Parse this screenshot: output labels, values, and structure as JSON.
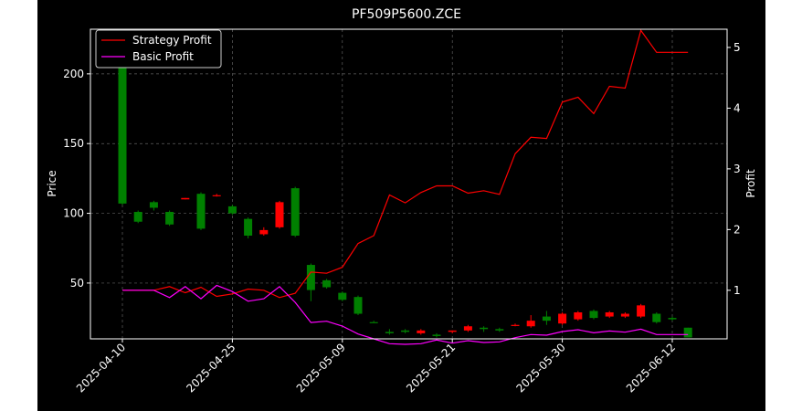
{
  "chart_data": {
    "type": "candlestick+line",
    "title": "PF509P5600.ZCE",
    "ylabel_left": "Price",
    "ylabel_right": "Profit",
    "ylim_left": [
      10,
      232
    ],
    "ylim_right": [
      0.2,
      5.3
    ],
    "yticks_left": [
      50,
      100,
      150,
      200
    ],
    "yticks_right": [
      1,
      2,
      3,
      4,
      5
    ],
    "xticks": [
      "2025-04-10",
      "2025-04-25",
      "2025-05-09",
      "2025-05-21",
      "2025-05-30",
      "2025-06-12"
    ],
    "grid": true,
    "legend_position": "upper-left",
    "colors": {
      "up": "#ff0000",
      "down": "#008000",
      "strategy": "#ff0000",
      "basic": "#ff00ff",
      "background": "#000000"
    },
    "candles": [
      {
        "o": 107,
        "c": 225,
        "h": 226,
        "l": 106
      },
      {
        "o": 94,
        "c": 101,
        "h": 102,
        "l": 93
      },
      {
        "o": 104,
        "c": 108,
        "h": 109,
        "l": 102
      },
      {
        "o": 92,
        "c": 101,
        "h": 102,
        "l": 91
      },
      {
        "o": 110,
        "c": 111,
        "h": 111,
        "l": 110
      },
      {
        "o": 89,
        "c": 114,
        "h": 115,
        "l": 88
      },
      {
        "o": 113,
        "c": 113,
        "h": 114,
        "l": 112
      },
      {
        "o": 100,
        "c": 105,
        "h": 106,
        "l": 99
      },
      {
        "o": 84,
        "c": 96,
        "h": 97,
        "l": 82
      },
      {
        "o": 85,
        "c": 88,
        "h": 90,
        "l": 84
      },
      {
        "o": 90,
        "c": 108,
        "h": 109,
        "l": 89
      },
      {
        "o": 84,
        "c": 118,
        "h": 119,
        "l": 83
      },
      {
        "o": 45,
        "c": 63,
        "h": 64,
        "l": 37
      },
      {
        "o": 47,
        "c": 52,
        "h": 53,
        "l": 46
      },
      {
        "o": 38,
        "c": 43,
        "h": 44,
        "l": 37
      },
      {
        "o": 28,
        "c": 40,
        "h": 41,
        "l": 27
      },
      {
        "o": 22,
        "c": 22,
        "h": 23,
        "l": 22
      },
      {
        "o": 14,
        "c": 15,
        "h": 17,
        "l": 13
      },
      {
        "o": 15,
        "c": 16,
        "h": 17,
        "l": 14
      },
      {
        "o": 14,
        "c": 16,
        "h": 17,
        "l": 13
      },
      {
        "o": 12,
        "c": 13,
        "h": 14,
        "l": 11
      },
      {
        "o": 15,
        "c": 16,
        "h": 16,
        "l": 14
      },
      {
        "o": 16,
        "c": 19,
        "h": 20,
        "l": 15
      },
      {
        "o": 17,
        "c": 18,
        "h": 19,
        "l": 15
      },
      {
        "o": 16,
        "c": 17,
        "h": 18,
        "l": 15
      },
      {
        "o": 20,
        "c": 20,
        "h": 21,
        "l": 19
      },
      {
        "o": 19,
        "c": 23,
        "h": 27,
        "l": 18
      },
      {
        "o": 23,
        "c": 26,
        "h": 30,
        "l": 20
      },
      {
        "o": 21,
        "c": 28,
        "h": 29,
        "l": 20
      },
      {
        "o": 24,
        "c": 29,
        "h": 30,
        "l": 23
      },
      {
        "o": 25,
        "c": 30,
        "h": 31,
        "l": 24
      },
      {
        "o": 26,
        "c": 29,
        "h": 30,
        "l": 25
      },
      {
        "o": 26,
        "c": 28,
        "h": 29,
        "l": 25
      },
      {
        "o": 26,
        "c": 34,
        "h": 35,
        "l": 25
      },
      {
        "o": 22,
        "c": 28,
        "h": 29,
        "l": 21
      },
      {
        "o": 24,
        "c": 25,
        "h": 26,
        "l": 23
      },
      {
        "o": 11,
        "c": 18,
        "h": 18,
        "l": 11
      }
    ],
    "series": [
      {
        "name": "Strategy Profit",
        "values": [
          1.0,
          1.0,
          1.0,
          1.06,
          0.96,
          1.05,
          0.9,
          0.94,
          1.02,
          1.0,
          0.88,
          0.95,
          1.3,
          1.28,
          1.38,
          1.77,
          1.9,
          2.57,
          2.44,
          2.61,
          2.72,
          2.72,
          2.6,
          2.64,
          2.58,
          3.25,
          3.52,
          3.5,
          4.1,
          4.18,
          3.91,
          4.36,
          4.33,
          5.28,
          4.92,
          4.92,
          4.92
        ]
      },
      {
        "name": "Basic Profit",
        "values": [
          1.0,
          1.0,
          1.0,
          0.88,
          1.06,
          0.86,
          1.08,
          0.98,
          0.82,
          0.86,
          1.06,
          0.8,
          0.47,
          0.49,
          0.41,
          0.28,
          0.2,
          0.12,
          0.11,
          0.12,
          0.18,
          0.13,
          0.17,
          0.14,
          0.15,
          0.22,
          0.27,
          0.26,
          0.32,
          0.35,
          0.3,
          0.33,
          0.31,
          0.36,
          0.27,
          0.27,
          0.27
        ]
      }
    ]
  }
}
